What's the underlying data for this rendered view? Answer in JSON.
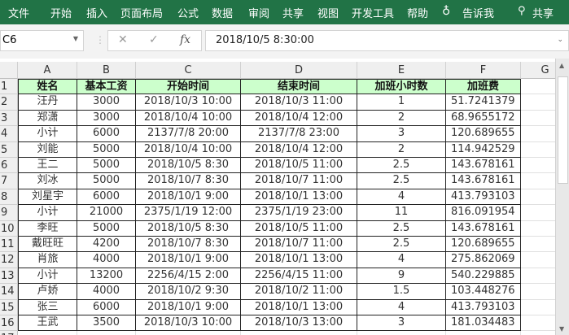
{
  "ribbon": {
    "tabs": [
      "文件",
      "开始",
      "插入",
      "页面布局",
      "公式",
      "数据",
      "审阅",
      "共享",
      "视图",
      "开发工具",
      "帮助"
    ],
    "tell_me": "告诉我",
    "share": "共享",
    "color": "#217346"
  },
  "formula_bar": {
    "name_box": "C6",
    "cancel_icon": "✕",
    "enter_icon": "✓",
    "fx_label": "fx",
    "value": "2018/10/5  8:30:00"
  },
  "sheet": {
    "columns": [
      "A",
      "B",
      "C",
      "D",
      "E",
      "F",
      "G"
    ],
    "header_fill": "#ccffcc",
    "headers": [
      "姓名",
      "基本工资",
      "开始时间",
      "结束时间",
      "加班小时数",
      "加班费"
    ],
    "rows": [
      [
        "汪丹",
        "3000",
        "2018/10/3 10:00",
        "2018/10/3 11:00",
        "1",
        "51.7241379"
      ],
      [
        "郑潇",
        "3000",
        "2018/10/4 10:00",
        "2018/10/4 12:00",
        "2",
        "68.9655172"
      ],
      [
        "小计",
        "6000",
        "2137/7/8 20:00",
        "2137/7/8 23:00",
        "3",
        "120.689655"
      ],
      [
        "刘能",
        "5000",
        "2018/10/4 10:00",
        "2018/10/4 12:00",
        "2",
        "114.942529"
      ],
      [
        "王二",
        "5000",
        "2018/10/5 8:30",
        "2018/10/5 11:00",
        "2.5",
        "143.678161"
      ],
      [
        "刘冰",
        "5000",
        "2018/10/7 8:30",
        "2018/10/7 11:00",
        "2.5",
        "143.678161"
      ],
      [
        "刘星宇",
        "6000",
        "2018/10/1 9:00",
        "2018/10/1 13:00",
        "4",
        "413.793103"
      ],
      [
        "小计",
        "21000",
        "2375/1/19 12:00",
        "2375/1/19 23:00",
        "11",
        "816.091954"
      ],
      [
        "李旺",
        "5000",
        "2018/10/5 8:30",
        "2018/10/5 11:00",
        "2.5",
        "143.678161"
      ],
      [
        "戴旺旺",
        "4200",
        "2018/10/7 8:30",
        "2018/10/7 11:00",
        "2.5",
        "120.689655"
      ],
      [
        "肖旅",
        "4000",
        "2018/10/1 9:00",
        "2018/10/1 13:00",
        "4",
        "275.862069"
      ],
      [
        "小计",
        "13200",
        "2256/4/15 2:00",
        "2256/4/15 11:00",
        "9",
        "540.229885"
      ],
      [
        "卢娇",
        "4000",
        "2018/10/2 9:30",
        "2018/10/2 11:00",
        "1.5",
        "103.448276"
      ],
      [
        "张三",
        "6000",
        "2018/10/1 9:00",
        "2018/10/1 13:00",
        "4",
        "413.793103"
      ],
      [
        "王武",
        "3500",
        "2018/10/3 10:00",
        "2018/10/3 13:00",
        "3",
        "181.034483"
      ]
    ],
    "row_numbers": [
      "1",
      "2",
      "3",
      "4",
      "5",
      "6",
      "7",
      "8",
      "9",
      "10",
      "11",
      "12",
      "13",
      "14",
      "15",
      "16"
    ]
  }
}
